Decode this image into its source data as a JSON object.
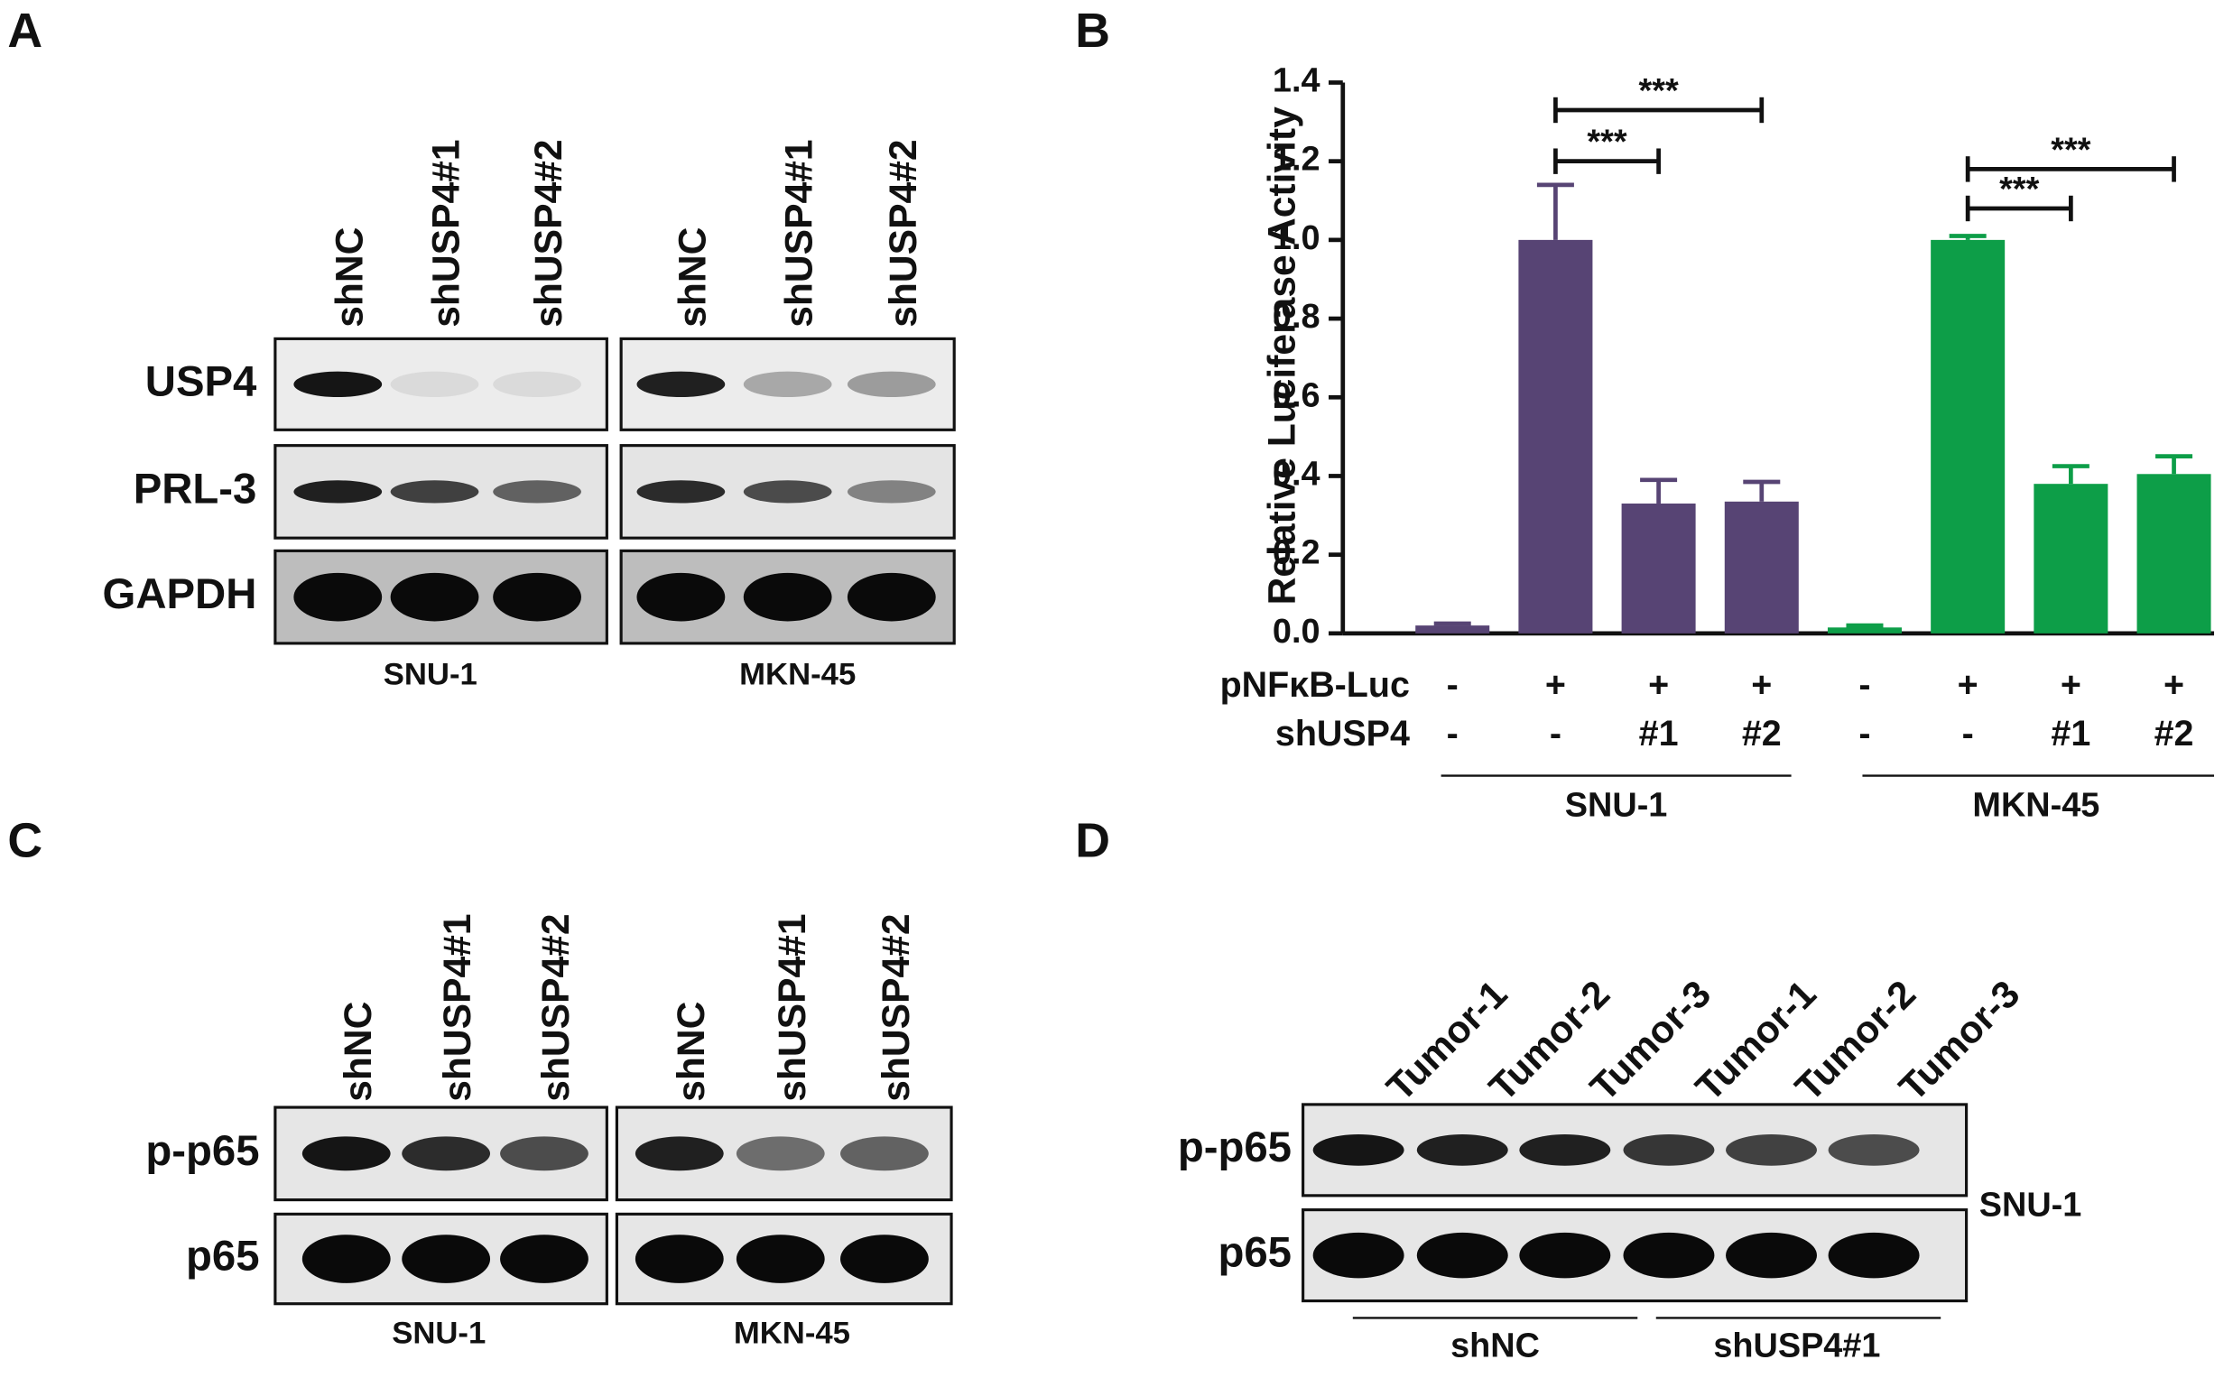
{
  "panel_labels": [
    "A",
    "B",
    "C",
    "D"
  ],
  "panel_a": {
    "lanes": [
      "shNC",
      "shUSP4#1",
      "shUSP4#2",
      "shNC",
      "shUSP4#1",
      "shUSP4#2"
    ],
    "rows": [
      "USP4",
      "PRL-3",
      "GAPDH"
    ],
    "cell_lines": [
      "SNU-1",
      "MKN-45"
    ]
  },
  "chart_data": {
    "type": "bar",
    "ylabel": "Relative Luciferase Activity",
    "values": [
      0.02,
      1.0,
      0.33,
      0.335,
      0.015,
      1.0,
      0.38,
      0.405
    ],
    "errors": [
      0.005,
      0.14,
      0.06,
      0.05,
      0.005,
      0.01,
      0.045,
      0.045
    ],
    "colors": [
      "#574474",
      "#574474",
      "#574474",
      "#574474",
      "#0d9e48",
      "#0d9e48",
      "#0d9e48",
      "#0d9e48"
    ],
    "ylim": [
      0,
      1.4
    ],
    "yticks": [
      {
        "value": 0,
        "label": "0.0"
      },
      0.2,
      0.4,
      0.6,
      0.8,
      {
        "value": 1,
        "label": "1.0"
      },
      1.2,
      1.4
    ],
    "rows": [
      {
        "label": "pNFκB-Luc",
        "cells": [
          "-",
          "+",
          "+",
          "+",
          "-",
          "+",
          "+",
          "+"
        ]
      },
      {
        "label": "shUSP4",
        "cells": [
          "-",
          "-",
          "#1",
          "#2",
          "-",
          "-",
          "#1",
          "#2"
        ]
      }
    ],
    "groups": [
      "SNU-1",
      "MKN-45"
    ],
    "significance": [
      {
        "text": "***",
        "bars": [
          1,
          2
        ],
        "y": 1.2
      },
      {
        "text": "***",
        "bars": [
          1,
          3
        ],
        "y": 1.33
      },
      {
        "text": "***",
        "bars": [
          5,
          6
        ],
        "y": 1.08
      },
      {
        "text": "***",
        "bars": [
          5,
          7
        ],
        "y": 1.18
      }
    ]
  },
  "panel_c": {
    "lanes": [
      "shNC",
      "shUSP4#1",
      "shUSP4#2",
      "shNC",
      "shUSP4#1",
      "shUSP4#2"
    ],
    "rows": [
      "p-p65",
      "p65"
    ],
    "cell_lines": [
      "SNU-1",
      "MKN-45"
    ]
  },
  "panel_d": {
    "lanes": [
      "Tumor-1",
      "Tumor-2",
      "Tumor-3",
      "Tumor-1",
      "Tumor-2",
      "Tumor-3"
    ],
    "rows": [
      "p-p65",
      "p65"
    ],
    "cell_line": "SNU-1",
    "groups": [
      "shNC",
      "shUSP4#1"
    ]
  }
}
